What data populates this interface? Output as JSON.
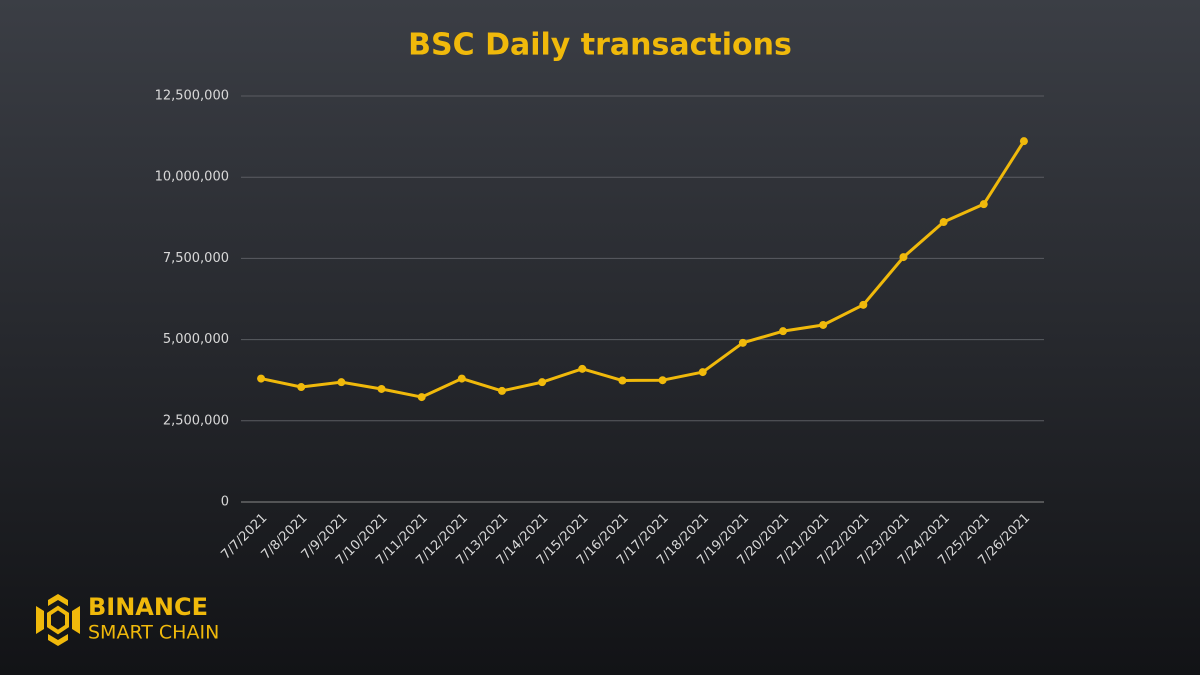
{
  "chart_data": {
    "type": "line",
    "title": "BSC Daily transactions",
    "categories": [
      "7/7/2021",
      "7/8/2021",
      "7/9/2021",
      "7/10/2021",
      "7/11/2021",
      "7/12/2021",
      "7/13/2021",
      "7/14/2021",
      "7/15/2021",
      "7/16/2021",
      "7/17/2021",
      "7/18/2021",
      "7/19/2021",
      "7/20/2021",
      "7/21/2021",
      "7/22/2021",
      "7/23/2021",
      "7/24/2021",
      "7/25/2021",
      "7/26/2021"
    ],
    "series": [
      {
        "name": "BSC Daily transactions",
        "color": "#f0b90b",
        "values": [
          3800000,
          3540000,
          3690000,
          3480000,
          3230000,
          3800000,
          3420000,
          3690000,
          4100000,
          3740000,
          3750000,
          4000000,
          4900000,
          5260000,
          5450000,
          6070000,
          7540000,
          8620000,
          9170000,
          11110000
        ]
      }
    ],
    "ylim": [
      0,
      12500000
    ],
    "yticks": [
      0,
      {
        "value": 2500000,
        "label": "2,500,000"
      },
      {
        "value": 5000000,
        "label": "5,000,000"
      },
      {
        "value": 7500000,
        "label": "7,500,000"
      },
      {
        "value": 10000000,
        "label": "10,000,000"
      },
      {
        "value": 12500000,
        "label": "12,500,000"
      }
    ],
    "grid": true
  },
  "brand": {
    "name": "BINANCE",
    "product": "SMART CHAIN"
  }
}
